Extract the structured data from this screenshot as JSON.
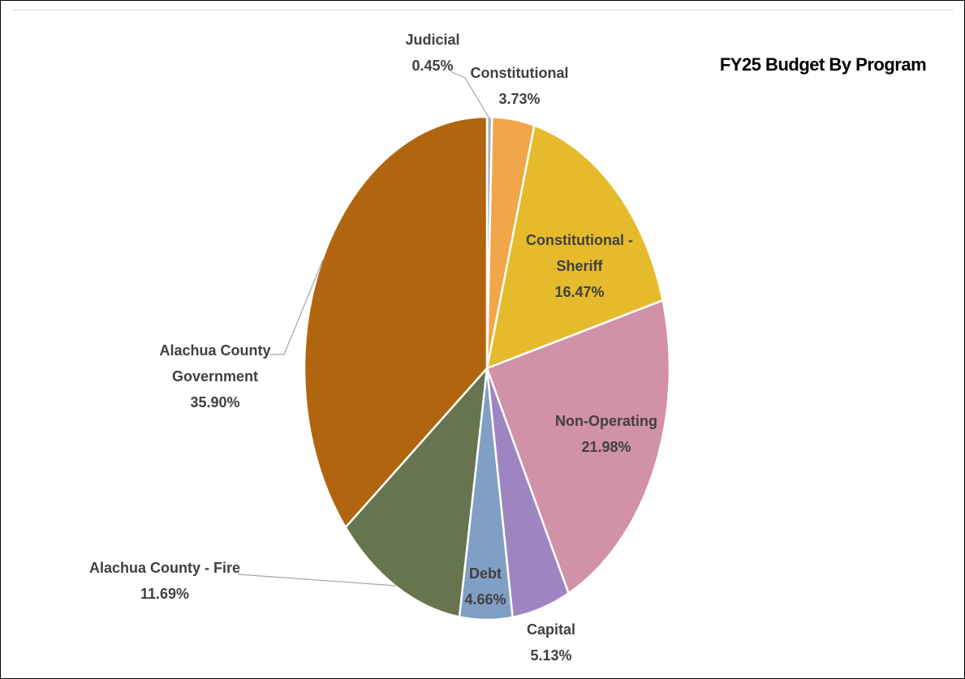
{
  "chart_data": {
    "type": "pie",
    "title": "FY25 Budget By Program",
    "slices": [
      {
        "label": "Judicial",
        "value": 0.45,
        "value_label": "0.45%",
        "color": "#a5b6c2"
      },
      {
        "label": "Constitutional",
        "value": 3.73,
        "value_label": "3.73%",
        "color": "#f2a64a"
      },
      {
        "label": "Constitutional - Sheriff",
        "value": 16.47,
        "value_label": "16.47%",
        "color": "#e5bb2b"
      },
      {
        "label": "Non-Operating",
        "value": 21.98,
        "value_label": "21.98%",
        "color": "#d191a6"
      },
      {
        "label": "Capital",
        "value": 5.13,
        "value_label": "5.13%",
        "color": "#9e85c2"
      },
      {
        "label": "Debt",
        "value": 4.66,
        "value_label": "4.66%",
        "color": "#809fc4"
      },
      {
        "label": "Alachua County - Fire",
        "value": 11.69,
        "value_label": "11.69%",
        "color": "#66754f"
      },
      {
        "label": "Alachua County Government",
        "value": 35.9,
        "value_label": "35.90%",
        "color": "#b1650f"
      }
    ],
    "start_angle_deg": 0,
    "direction": "clockwise",
    "legend": "none",
    "data_labels": "category name and percentage"
  }
}
